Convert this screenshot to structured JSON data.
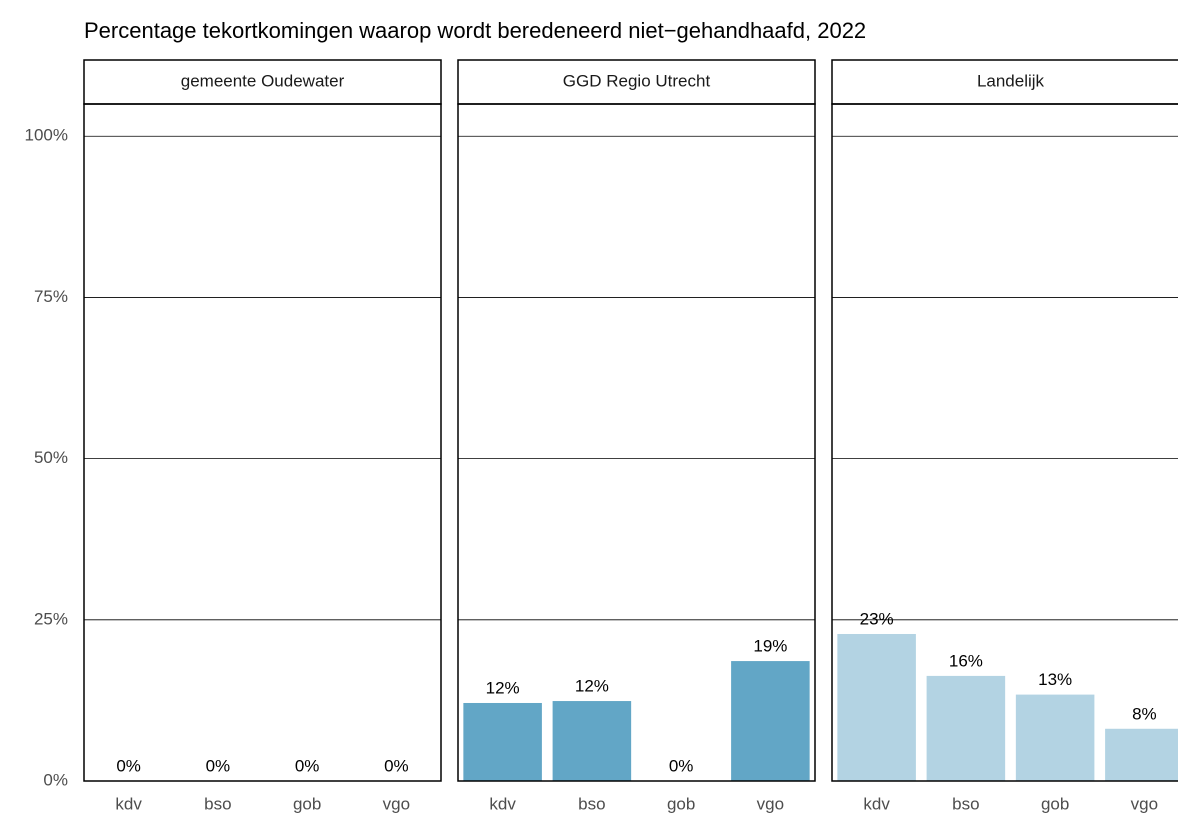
{
  "title": "Percentage tekortkomingen waarop wordt beredeneerd niet−gehandhaafd, 2022",
  "chart_data": [
    {
      "type": "bar",
      "title": "gemeente Oudewater",
      "categories": [
        "kdv",
        "bso",
        "gob",
        "vgo"
      ],
      "values": [
        0,
        0,
        0,
        0
      ],
      "value_labels": [
        "0%",
        "0%",
        "0%",
        "0%"
      ],
      "color": "#62a6c6",
      "ylim": [
        0,
        105
      ],
      "yticks": [
        {
          "value": 0,
          "label": "0%"
        },
        {
          "value": 25,
          "label": "25%"
        },
        {
          "value": 50,
          "label": "50%"
        },
        {
          "value": 75,
          "label": "75%"
        },
        {
          "value": 100,
          "label": "100%"
        }
      ],
      "grid": true
    },
    {
      "type": "bar",
      "title": "GGD Regio Utrecht",
      "categories": [
        "kdv",
        "bso",
        "gob",
        "vgo"
      ],
      "values": [
        12.1,
        12.4,
        0,
        18.6
      ],
      "value_labels": [
        "12%",
        "12%",
        "0%",
        "19%"
      ],
      "color": "#62a6c6",
      "ylim": [
        0,
        105
      ],
      "yticks": [
        {
          "value": 0,
          "label": "0%"
        },
        {
          "value": 25,
          "label": "25%"
        },
        {
          "value": 50,
          "label": "50%"
        },
        {
          "value": 75,
          "label": "75%"
        },
        {
          "value": 100,
          "label": "100%"
        }
      ],
      "grid": true
    },
    {
      "type": "bar",
      "title": "Landelijk",
      "categories": [
        "kdv",
        "bso",
        "gob",
        "vgo"
      ],
      "values": [
        22.8,
        16.3,
        13.4,
        8.1
      ],
      "value_labels": [
        "23%",
        "16%",
        "13%",
        "8%"
      ],
      "color": "#b3d3e3",
      "ylim": [
        0,
        105
      ],
      "yticks": [
        {
          "value": 0,
          "label": "0%"
        },
        {
          "value": 25,
          "label": "25%"
        },
        {
          "value": 50,
          "label": "50%"
        },
        {
          "value": 75,
          "label": "75%"
        },
        {
          "value": 100,
          "label": "100%"
        }
      ],
      "grid": true
    }
  ]
}
